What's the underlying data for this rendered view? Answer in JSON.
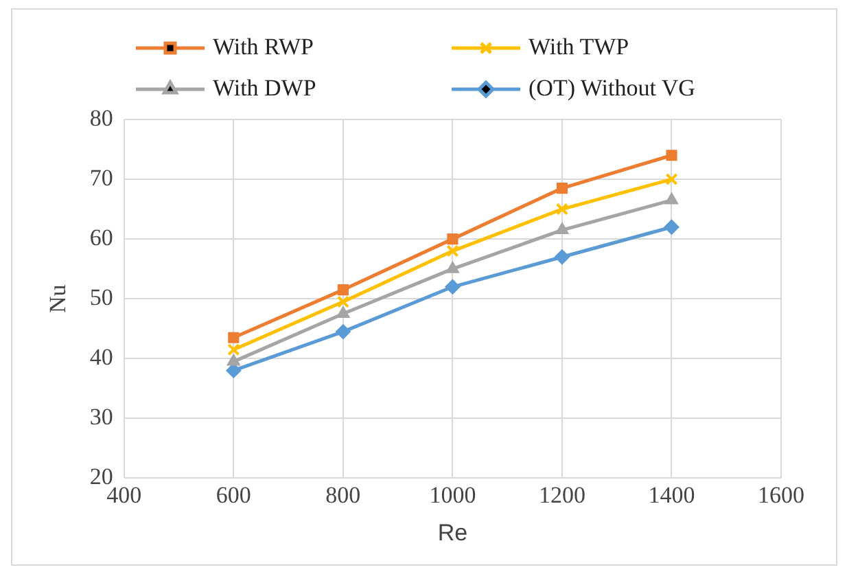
{
  "chart_data": {
    "type": "line",
    "xlabel": "Re",
    "ylabel": "Nu",
    "x": [
      600,
      800,
      1000,
      1200,
      1400
    ],
    "series": [
      {
        "name": "With RWP",
        "color": "#ed7d31",
        "marker": "square",
        "values": [
          43.5,
          51.5,
          60,
          68.5,
          74
        ]
      },
      {
        "name": "With TWP",
        "color": "#ffc000",
        "marker": "cross",
        "values": [
          41.5,
          49.5,
          58,
          65,
          70
        ]
      },
      {
        "name": "With DWP",
        "color": "#a5a5a5",
        "marker": "triangle",
        "values": [
          39.5,
          47.5,
          55,
          61.5,
          66.5
        ]
      },
      {
        "name": "(OT) Without VG",
        "color": "#5b9bd5",
        "marker": "diamond",
        "values": [
          38,
          44.5,
          52,
          57,
          62
        ]
      }
    ],
    "xlim": [
      400,
      1600
    ],
    "xticks": [
      400,
      600,
      800,
      1000,
      1200,
      1400,
      1600
    ],
    "ylim": [
      20,
      80
    ],
    "yticks": [
      20,
      30,
      40,
      50,
      60,
      70,
      80
    ],
    "grid": true,
    "legend": "top",
    "line_style": "solid"
  }
}
